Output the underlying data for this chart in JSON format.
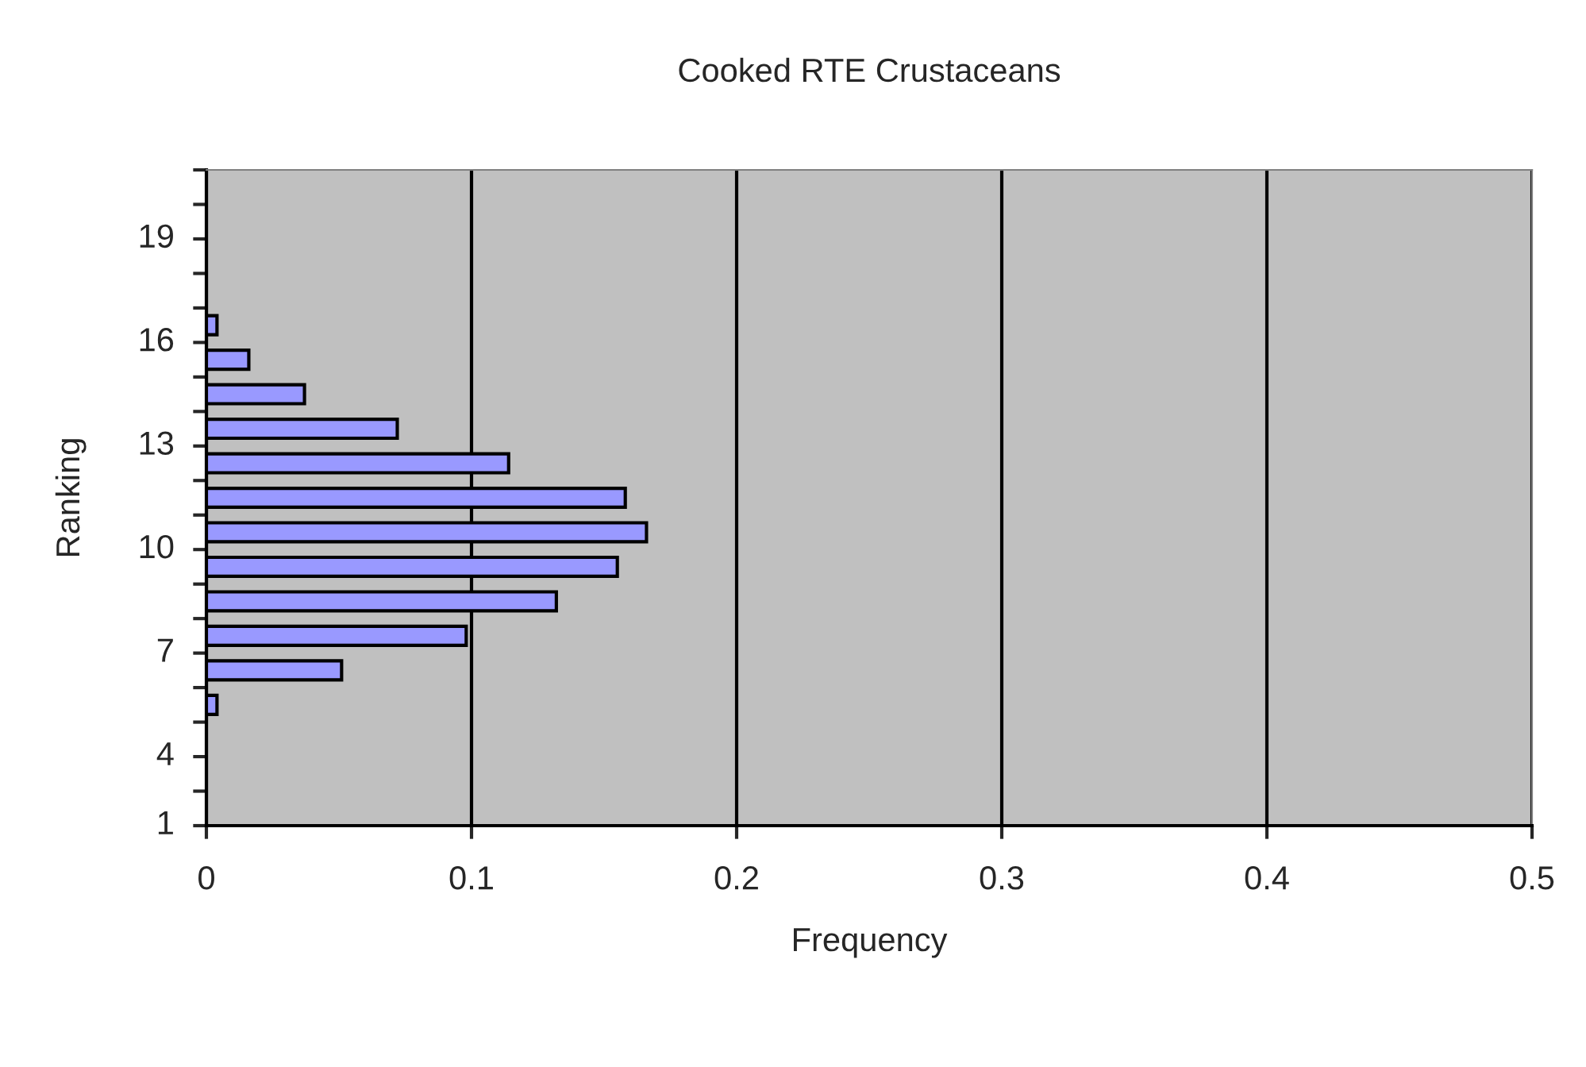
{
  "chart_data": {
    "type": "bar",
    "orientation": "horizontal",
    "title": "Cooked RTE Crustaceans",
    "xlabel": "Frequency",
    "ylabel": "Ranking",
    "categories": [
      null,
      "19",
      null,
      null,
      "16",
      null,
      null,
      "13",
      null,
      null,
      "10",
      null,
      null,
      "7",
      null,
      null,
      "4",
      null,
      "1"
    ],
    "values": [
      null,
      null,
      null,
      null,
      0.004,
      0.016,
      0.037,
      0.072,
      0.114,
      0.158,
      0.166,
      0.155,
      0.132,
      0.098,
      0.051,
      0.004,
      null,
      null,
      null
    ],
    "color": "#9999ff",
    "xlim": [
      0,
      0.5
    ],
    "xticks": [
      0,
      0.1,
      0.2,
      0.3,
      0.4,
      0.5
    ],
    "grid": "x"
  }
}
